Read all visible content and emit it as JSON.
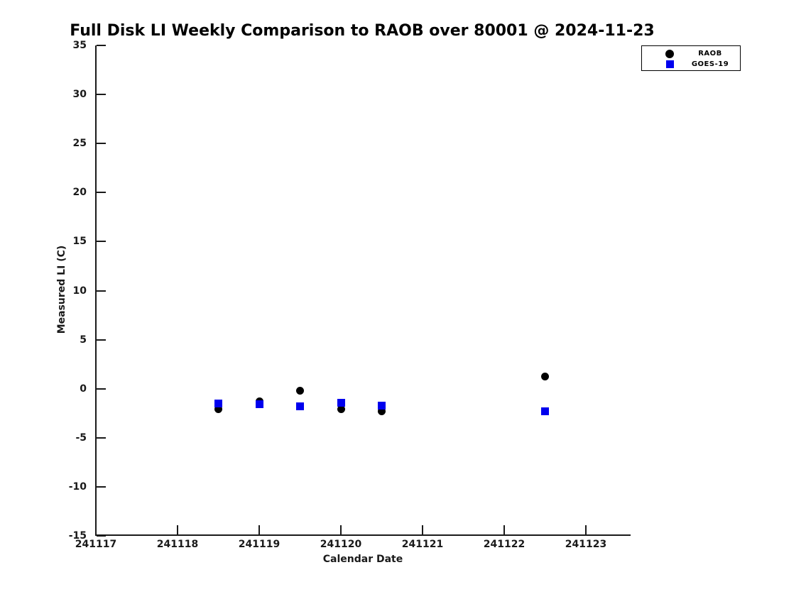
{
  "title": "Full Disk LI Weekly Comparison to RAOB over 80001 @ 2024-11-23",
  "chart_data": {
    "type": "scatter",
    "title": "Full Disk LI Weekly Comparison to RAOB over 80001 @ 2024-11-23",
    "xlabel": "Calendar Date",
    "ylabel": "Measured LI (C)",
    "xlim": [
      241117,
      241123.55
    ],
    "ylim": [
      -15,
      35
    ],
    "x_ticks": [
      241117,
      241118,
      241119,
      241120,
      241121,
      241122,
      241123
    ],
    "y_ticks": [
      35,
      30,
      25,
      20,
      15,
      10,
      5,
      0,
      -5,
      -10,
      -15
    ],
    "grid": false,
    "legend_position": "upper right",
    "series": [
      {
        "name": "RAOB",
        "marker": "circle",
        "color": "#000000",
        "x": [
          241118.5,
          241119.0,
          241119.5,
          241120.0,
          241120.5,
          241122.5
        ],
        "y": [
          -2.1,
          -1.3,
          -0.2,
          -2.1,
          -2.3,
          1.25
        ]
      },
      {
        "name": "GOES-19",
        "marker": "square",
        "color": "#0000ee",
        "x": [
          241118.5,
          241119.0,
          241119.5,
          241120.0,
          241120.5,
          241122.5
        ],
        "y": [
          -1.5,
          -1.6,
          -1.8,
          -1.4,
          -1.7,
          -2.3
        ]
      }
    ]
  }
}
